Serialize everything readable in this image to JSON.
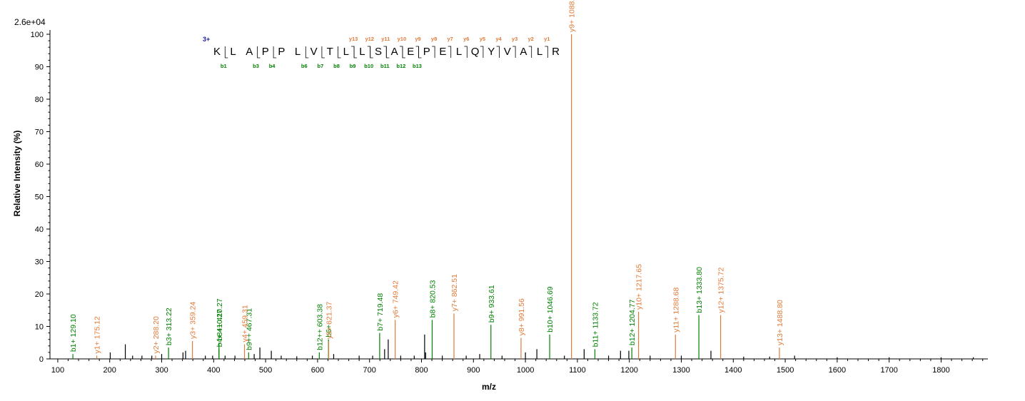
{
  "chart_data": {
    "type": "bar",
    "title": "",
    "xlabel": "m/z",
    "ylabel": "Relative   Intensity (%)",
    "intensity_scale": "2.6e+04",
    "xlim": [
      85,
      1890
    ],
    "ylim": [
      0,
      100
    ],
    "x_ticks": [
      100,
      200,
      300,
      400,
      500,
      600,
      700,
      800,
      900,
      1000,
      1100,
      1200,
      1300,
      1400,
      1500,
      1600,
      1700,
      1800
    ],
    "y_ticks": [
      0,
      10,
      20,
      30,
      40,
      50,
      60,
      70,
      80,
      90,
      100
    ],
    "colors": {
      "b_ion": "#008000",
      "y_ion": "#e07b39",
      "other": "#000000",
      "charge": "#1a1a99"
    },
    "series": [
      {
        "name": "b ions",
        "color": "#008000",
        "peaks": [
          {
            "mz": 129.1,
            "intensity": 1.5,
            "label": "b1+ 129.10"
          },
          {
            "mz": 313.22,
            "intensity": 3.5,
            "label": "b3+ 313.22"
          },
          {
            "mz": 410.27,
            "intensity": 3.0,
            "label": "b4+ 410.27"
          },
          {
            "mz": 410.27,
            "intensity": 5.0,
            "label": "b8++ 410.27"
          },
          {
            "mz": 467.31,
            "intensity": 2.0,
            "label": "b9++ 467.31"
          },
          {
            "mz": 603.38,
            "intensity": 2.0,
            "label": "b12++ 603.38"
          },
          {
            "mz": 621.0,
            "intensity": 6.0,
            "label": "b6+"
          },
          {
            "mz": 719.48,
            "intensity": 8.0,
            "label": "b7+ 719.48"
          },
          {
            "mz": 820.53,
            "intensity": 12.0,
            "label": "b8+ 820.53"
          },
          {
            "mz": 933.61,
            "intensity": 10.5,
            "label": "b9+ 933.61"
          },
          {
            "mz": 1046.69,
            "intensity": 7.5,
            "label": "b10+ 1046.69"
          },
          {
            "mz": 1133.72,
            "intensity": 3.0,
            "label": "b11+ 1133.72"
          },
          {
            "mz": 1204.77,
            "intensity": 3.5,
            "label": "b12+ 1204.77"
          },
          {
            "mz": 1333.8,
            "intensity": 13.5,
            "label": "b13+ 1333.80"
          }
        ]
      },
      {
        "name": "y ions",
        "color": "#e07b39",
        "peaks": [
          {
            "mz": 175.12,
            "intensity": 1.0,
            "label": "y1+ 175.12"
          },
          {
            "mz": 288.2,
            "intensity": 1.0,
            "label": "y2+ 288.20"
          },
          {
            "mz": 359.24,
            "intensity": 5.5,
            "label": "y3+ 359.24"
          },
          {
            "mz": 459.31,
            "intensity": 4.5,
            "label": "y4+ 459.31"
          },
          {
            "mz": 621.37,
            "intensity": 5.5,
            "label": "y5+ 621.37"
          },
          {
            "mz": 749.42,
            "intensity": 12.0,
            "label": "y6+ 749.42"
          },
          {
            "mz": 862.51,
            "intensity": 14.0,
            "label": "y7+ 862.51"
          },
          {
            "mz": 991.56,
            "intensity": 6.5,
            "label": "y8+ 991.56"
          },
          {
            "mz": 1088.61,
            "intensity": 100.0,
            "label": "y9+ 1088.61"
          },
          {
            "mz": 1217.65,
            "intensity": 14.5,
            "label": "y10+ 1217.65"
          },
          {
            "mz": 1288.68,
            "intensity": 7.5,
            "label": "y11+ 1288.68"
          },
          {
            "mz": 1375.72,
            "intensity": 13.5,
            "label": "y12+ 1375.72"
          },
          {
            "mz": 1488.8,
            "intensity": 3.5,
            "label": "y13+ 1488.80"
          }
        ]
      },
      {
        "name": "unassigned",
        "color": "#000000",
        "peaks": [
          {
            "mz": 201,
            "intensity": 2.0
          },
          {
            "mz": 230,
            "intensity": 4.5
          },
          {
            "mz": 244,
            "intensity": 1.0
          },
          {
            "mz": 262,
            "intensity": 1.0
          },
          {
            "mz": 281,
            "intensity": 1.0
          },
          {
            "mz": 300,
            "intensity": 1.5
          },
          {
            "mz": 341,
            "intensity": 2.0
          },
          {
            "mz": 346,
            "intensity": 2.5
          },
          {
            "mz": 384,
            "intensity": 1.0
          },
          {
            "mz": 398,
            "intensity": 1.0
          },
          {
            "mz": 422,
            "intensity": 1.0
          },
          {
            "mz": 441,
            "intensity": 1.0
          },
          {
            "mz": 478,
            "intensity": 1.5
          },
          {
            "mz": 489,
            "intensity": 3.5
          },
          {
            "mz": 511,
            "intensity": 2.5
          },
          {
            "mz": 530,
            "intensity": 1.0
          },
          {
            "mz": 560,
            "intensity": 0.8
          },
          {
            "mz": 590,
            "intensity": 1.0
          },
          {
            "mz": 631,
            "intensity": 1.5
          },
          {
            "mz": 680,
            "intensity": 1.0
          },
          {
            "mz": 706,
            "intensity": 1.0
          },
          {
            "mz": 729,
            "intensity": 3.0
          },
          {
            "mz": 736,
            "intensity": 6.0
          },
          {
            "mz": 760,
            "intensity": 1.0
          },
          {
            "mz": 786,
            "intensity": 1.0
          },
          {
            "mz": 806,
            "intensity": 7.5
          },
          {
            "mz": 808,
            "intensity": 2.0
          },
          {
            "mz": 840,
            "intensity": 1.0
          },
          {
            "mz": 886,
            "intensity": 1.0
          },
          {
            "mz": 912,
            "intensity": 1.5
          },
          {
            "mz": 955,
            "intensity": 1.0
          },
          {
            "mz": 1000,
            "intensity": 2.0
          },
          {
            "mz": 1022,
            "intensity": 3.0
          },
          {
            "mz": 1075,
            "intensity": 1.0
          },
          {
            "mz": 1113,
            "intensity": 3.0
          },
          {
            "mz": 1160,
            "intensity": 1.0
          },
          {
            "mz": 1183,
            "intensity": 2.5
          },
          {
            "mz": 1199,
            "intensity": 2.5
          },
          {
            "mz": 1240,
            "intensity": 1.0
          },
          {
            "mz": 1300,
            "intensity": 1.0
          },
          {
            "mz": 1357,
            "intensity": 2.5
          },
          {
            "mz": 1420,
            "intensity": 0.7
          },
          {
            "mz": 1470,
            "intensity": 0.7
          },
          {
            "mz": 1518,
            "intensity": 1.0
          },
          {
            "mz": 1600,
            "intensity": 0.5
          },
          {
            "mz": 1700,
            "intensity": 0.5
          },
          {
            "mz": 1800,
            "intensity": 0.5
          },
          {
            "mz": 1862,
            "intensity": 0.5
          }
        ]
      }
    ],
    "sequence_annotation": {
      "charge": "3+",
      "residues": [
        "K",
        "L",
        "A",
        "P",
        "P",
        "L",
        "V",
        "T",
        "L",
        "L",
        "S",
        "A",
        "E",
        "P",
        "E",
        "L",
        "Q",
        "Y",
        "V",
        "A",
        "L",
        "R"
      ],
      "y_fragments": [
        "y13",
        "y12",
        "y11",
        "y10",
        "y9",
        "y8",
        "y7",
        "y6",
        "y5",
        "y4",
        "y3",
        "y2",
        "y1"
      ],
      "b_fragments": [
        "b1",
        "b3",
        "b4",
        "b6",
        "b7",
        "b8",
        "b9",
        "b10",
        "b11",
        "b12",
        "b13"
      ]
    }
  }
}
